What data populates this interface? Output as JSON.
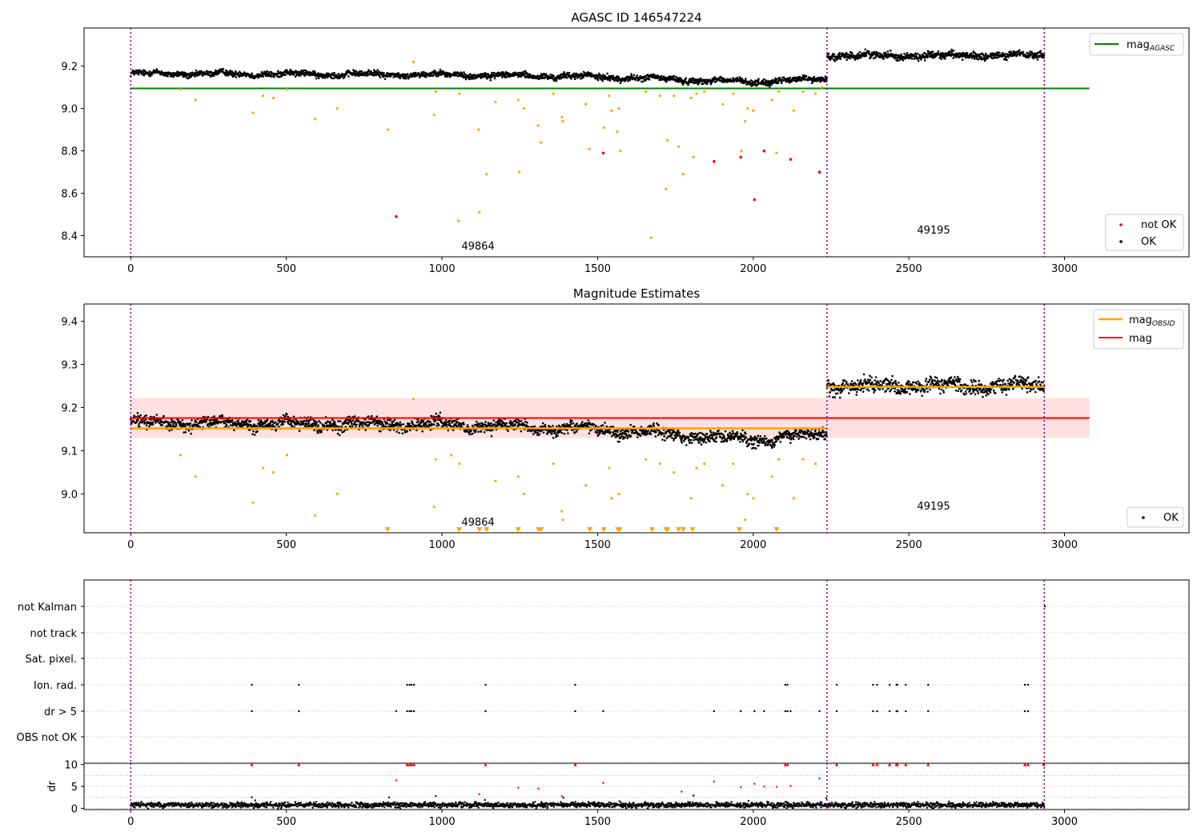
{
  "chart_data": [
    {
      "type": "scatter",
      "title": "AGASC ID 146547224",
      "xlim": [
        -150,
        3400
      ],
      "ylim": [
        8.3,
        9.38
      ],
      "xticks": [
        0,
        500,
        1000,
        1500,
        2000,
        2500,
        3000
      ],
      "yticks": [
        8.4,
        8.6,
        8.8,
        9.0,
        9.2
      ],
      "grid": false,
      "vlines": [
        0,
        2237,
        2935
      ],
      "obsid_labels": [
        {
          "text": "49864",
          "x": 1120,
          "y": 8.335
        },
        {
          "text": "49195",
          "x": 2585,
          "y": 8.41
        }
      ],
      "reference_line": {
        "name": "mag_AGASC",
        "value": 9.095,
        "x": [
          0,
          3080
        ],
        "color": "#008000"
      },
      "segments": [
        {
          "x": [
            0,
            2237
          ],
          "trend": [
            [
              0,
              9.165
            ],
            [
              1000,
              9.16
            ],
            [
              1500,
              9.15
            ],
            [
              2000,
              9.125
            ],
            [
              2237,
              9.14
            ]
          ],
          "noise": 0.012
        },
        {
          "x": [
            2237,
            2935
          ],
          "trend": [
            [
              2237,
              9.25
            ],
            [
              2935,
              9.25
            ]
          ],
          "noise": 0.015
        }
      ],
      "legends": [
        {
          "position": "top-right",
          "entries": [
            {
              "label": "mag",
              "sub": "AGASC",
              "marker": "line",
              "color": "#008000"
            }
          ]
        },
        {
          "position": "bottom-right",
          "entries": [
            {
              "label": "not OK",
              "marker": "dot",
              "color": "#ff0000"
            },
            {
              "label": "OK",
              "marker": "dot",
              "color": "#000000"
            }
          ]
        }
      ],
      "outliers_orange": [
        [
          160,
          9.09
        ],
        [
          208,
          9.04
        ],
        [
          393,
          8.98
        ],
        [
          425,
          9.06
        ],
        [
          458,
          9.05
        ],
        [
          502,
          9.09
        ],
        [
          592,
          8.95
        ],
        [
          663,
          9.0
        ],
        [
          826,
          8.9
        ],
        [
          908,
          9.22
        ],
        [
          975,
          8.97
        ],
        [
          980,
          9.08
        ],
        [
          1053,
          8.47
        ],
        [
          1056,
          9.07
        ],
        [
          1118,
          8.9
        ],
        [
          1120,
          8.51
        ],
        [
          1143,
          8.69
        ],
        [
          1172,
          9.03
        ],
        [
          1245,
          9.04
        ],
        [
          1248,
          8.7
        ],
        [
          1263,
          9.0
        ],
        [
          1309,
          8.92
        ],
        [
          1318,
          8.84
        ],
        [
          1358,
          9.07
        ],
        [
          1385,
          8.96
        ],
        [
          1388,
          8.94
        ],
        [
          1462,
          9.02
        ],
        [
          1474,
          8.81
        ],
        [
          1520,
          8.91
        ],
        [
          1537,
          9.06
        ],
        [
          1545,
          8.99
        ],
        [
          1563,
          8.89
        ],
        [
          1568,
          9.0
        ],
        [
          1573,
          8.8
        ],
        [
          1655,
          9.08
        ],
        [
          1672,
          8.39
        ],
        [
          1700,
          9.06
        ],
        [
          1720,
          8.62
        ],
        [
          1724,
          8.85
        ],
        [
          1745,
          9.06
        ],
        [
          1760,
          8.82
        ],
        [
          1775,
          8.69
        ],
        [
          1800,
          9.05
        ],
        [
          1808,
          8.77
        ],
        [
          1818,
          9.07
        ],
        [
          1843,
          9.08
        ],
        [
          1902,
          9.02
        ],
        [
          1936,
          9.07
        ],
        [
          1962,
          8.8
        ],
        [
          1974,
          8.94
        ],
        [
          1982,
          9.0
        ],
        [
          2000,
          8.99
        ],
        [
          2060,
          9.04
        ],
        [
          2075,
          8.79
        ],
        [
          2082,
          9.08
        ],
        [
          2130,
          8.99
        ],
        [
          2160,
          9.08
        ],
        [
          2200,
          9.07
        ],
        [
          2220,
          9.1
        ]
      ],
      "outliers_red": [
        [
          853,
          8.49
        ],
        [
          1518,
          8.79
        ],
        [
          1874,
          8.75
        ],
        [
          1960,
          8.77
        ],
        [
          2004,
          8.57
        ],
        [
          2035,
          8.8
        ],
        [
          2120,
          8.76
        ],
        [
          2213,
          8.7
        ]
      ]
    },
    {
      "type": "scatter",
      "title": "Magnitude Estimates",
      "xlim": [
        -150,
        3400
      ],
      "ylim": [
        8.91,
        9.44
      ],
      "xticks": [
        0,
        500,
        1000,
        1500,
        2000,
        2500,
        3000
      ],
      "yticks": [
        9.0,
        9.1,
        9.2,
        9.3,
        9.4
      ],
      "grid": false,
      "vlines": [
        0,
        2237,
        2935
      ],
      "obsid_labels": [
        {
          "text": "49864",
          "x": 1120,
          "y": 8.925
        },
        {
          "text": "49195",
          "x": 2585,
          "y": 8.96
        }
      ],
      "band": {
        "x": [
          0,
          3080
        ],
        "y": [
          9.13,
          9.222
        ],
        "color": "#ff0000",
        "opacity": 0.12
      },
      "mean_line": {
        "name": "mag",
        "value": 9.176,
        "x": [
          0,
          3080
        ],
        "color": "#ff0000"
      },
      "obsid_lines": [
        {
          "x": [
            0,
            2237
          ],
          "value": 9.152,
          "color": "#ffa500"
        },
        {
          "x": [
            2237,
            2935
          ],
          "value": 9.248,
          "color": "#ffa500"
        }
      ],
      "segments": [
        {
          "x": [
            0,
            2237
          ],
          "trend": [
            [
              0,
              9.165
            ],
            [
              1000,
              9.16
            ],
            [
              1500,
              9.15
            ],
            [
              2000,
              9.125
            ],
            [
              2237,
              9.14
            ]
          ],
          "noise": 0.012
        },
        {
          "x": [
            2237,
            2935
          ],
          "trend": [
            [
              2237,
              9.25
            ],
            [
              2935,
              9.25
            ]
          ],
          "noise": 0.015
        }
      ],
      "legends": [
        {
          "position": "top-right",
          "entries": [
            {
              "label": "mag",
              "sub": "OBSID",
              "marker": "line",
              "color": "#ffa500"
            },
            {
              "label": "mag",
              "marker": "line",
              "color": "#ff0000"
            }
          ]
        },
        {
          "position": "bottom-right",
          "entries": [
            {
              "label": "OK",
              "marker": "dot",
              "color": "#000000"
            }
          ]
        }
      ],
      "outliers_orange": [
        [
          160,
          9.09
        ],
        [
          208,
          9.04
        ],
        [
          393,
          8.98
        ],
        [
          425,
          9.06
        ],
        [
          458,
          9.05
        ],
        [
          502,
          9.09
        ],
        [
          592,
          8.95
        ],
        [
          663,
          9.0
        ],
        [
          908,
          9.22
        ],
        [
          975,
          8.97
        ],
        [
          980,
          9.08
        ],
        [
          1030,
          9.09
        ],
        [
          1056,
          9.07
        ],
        [
          1172,
          9.03
        ],
        [
          1245,
          9.04
        ],
        [
          1263,
          9.0
        ],
        [
          1358,
          9.07
        ],
        [
          1385,
          8.96
        ],
        [
          1388,
          8.94
        ],
        [
          1462,
          9.02
        ],
        [
          1537,
          9.06
        ],
        [
          1545,
          8.99
        ],
        [
          1568,
          9.0
        ],
        [
          1655,
          9.08
        ],
        [
          1700,
          9.07
        ],
        [
          1745,
          9.05
        ],
        [
          1800,
          8.99
        ],
        [
          1818,
          9.06
        ],
        [
          1843,
          9.07
        ],
        [
          1902,
          9.02
        ],
        [
          1936,
          9.07
        ],
        [
          1974,
          8.94
        ],
        [
          1982,
          9.0
        ],
        [
          2000,
          8.99
        ],
        [
          2060,
          9.04
        ],
        [
          2082,
          9.08
        ],
        [
          2130,
          8.99
        ],
        [
          2160,
          9.08
        ],
        [
          2200,
          9.07
        ]
      ],
      "lower_limits": [
        825,
        1055,
        1120,
        1143,
        1245,
        1310,
        1318,
        1475,
        1520,
        1565,
        1571,
        1675,
        1720,
        1725,
        1760,
        1775,
        1805,
        1955,
        2075
      ]
    },
    {
      "type": "scatter",
      "xlim": [
        -150,
        3400
      ],
      "xticks": [
        0,
        500,
        1000,
        1500,
        2000,
        2500,
        3000
      ],
      "vlines": [
        0,
        2237,
        2935
      ],
      "flag_rows": [
        "not Kalman",
        "not track",
        "Sat. pixel.",
        "Ion. rad.",
        "dr > 5",
        "OBS not OK"
      ],
      "grid": true,
      "flags": {
        "not Kalman": [
          2937
        ],
        "not track": [],
        "Sat. pixel.": [],
        "Ion. rad.": [
          389,
          540,
          888,
          896,
          902,
          910,
          1140,
          1428,
          2103,
          2110,
          2268,
          2385,
          2398,
          2438,
          2460,
          2463,
          2490,
          2562,
          2873,
          2883
        ],
        "dr > 5": [
          389,
          540,
          853,
          888,
          896,
          902,
          910,
          1140,
          1428,
          1518,
          1874,
          1960,
          2004,
          2035,
          2103,
          2110,
          2120,
          2213,
          2268,
          2385,
          2398,
          2438,
          2460,
          2463,
          2490,
          2562,
          2873,
          2883
        ],
        "OBS not OK": []
      }
    },
    {
      "type": "scatter",
      "ylabel": "dr",
      "xlim": [
        -150,
        3400
      ],
      "ylim": [
        -0.3,
        10.3
      ],
      "xticks": [
        0,
        500,
        1000,
        1500,
        2000,
        2500,
        3000
      ],
      "yticks": [
        0,
        5,
        10
      ],
      "grid": true,
      "vlines": [
        0,
        2237,
        2935
      ],
      "noise": {
        "x": [
          0,
          2935
        ],
        "mean": 0.75,
        "spread": 0.45
      },
      "points_red_capped": [
        389,
        540,
        888,
        896,
        902,
        910,
        1140,
        1428,
        2103,
        2110,
        2268,
        2385,
        2398,
        2438,
        2460,
        2463,
        2490,
        2562,
        2873,
        2883,
        2933
      ],
      "points_red": [
        [
          853,
          6.4
        ],
        [
          1120,
          3.2
        ],
        [
          1245,
          4.7
        ],
        [
          1310,
          4.5
        ],
        [
          1385,
          2.8
        ],
        [
          1518,
          5.8
        ],
        [
          1770,
          3.8
        ],
        [
          1874,
          6.1
        ],
        [
          1960,
          4.8
        ],
        [
          2004,
          5.6
        ],
        [
          2035,
          5.0
        ],
        [
          2075,
          4.9
        ],
        [
          2120,
          5.1
        ],
        [
          2213,
          6.8
        ]
      ],
      "points_black_high": [
        [
          389,
          2.5
        ],
        [
          400,
          1.8
        ],
        [
          830,
          2.5
        ],
        [
          980,
          2.8
        ],
        [
          1138,
          1.9
        ],
        [
          1390,
          2.4
        ],
        [
          1570,
          1.6
        ],
        [
          1808,
          2.9
        ],
        [
          1985,
          1.7
        ],
        [
          2235,
          2.3
        ]
      ]
    }
  ]
}
